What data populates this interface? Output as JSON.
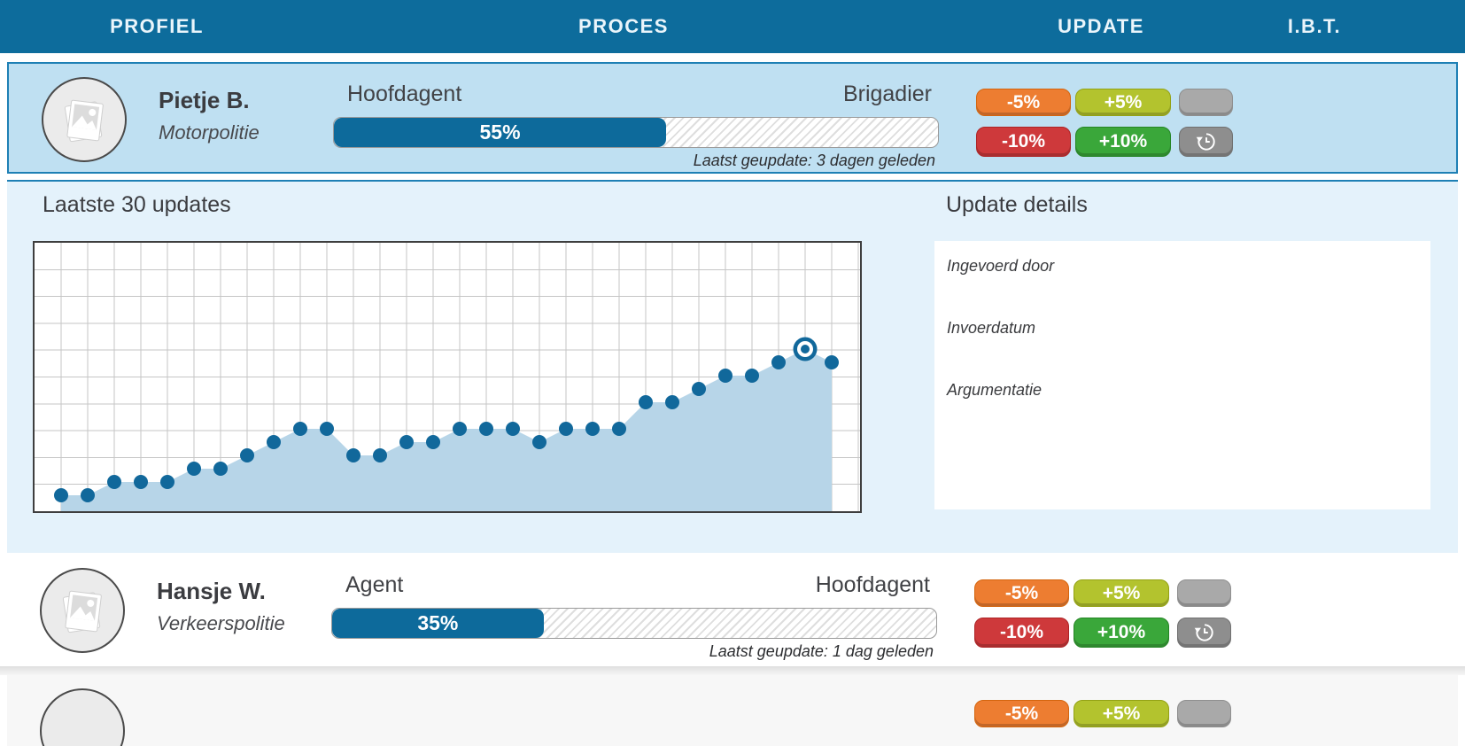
{
  "header": {
    "tabs": [
      {
        "label": "PROFIEL"
      },
      {
        "label": "PROCES"
      },
      {
        "label": "UPDATE"
      },
      {
        "label": "I.B.T."
      }
    ]
  },
  "button_labels": {
    "minus5": "-5%",
    "plus5": "+5%",
    "minus10": "-10%",
    "plus10": "+10%"
  },
  "rows": [
    {
      "name": "Pietje B.",
      "unit": "Motorpolitie",
      "level_from": "Hoofdagent",
      "level_to": "Brigadier",
      "progress_pct": 55,
      "progress_label": "55%",
      "last_update": "Laatst geupdate: 3 dagen geleden",
      "selected": true
    },
    {
      "name": "Hansje W.",
      "unit": "Verkeerspolitie",
      "level_from": "Agent",
      "level_to": "Hoofdagent",
      "progress_pct": 35,
      "progress_label": "35%",
      "last_update": "Laatst geupdate: 1 dag geleden",
      "selected": false
    }
  ],
  "expanded": {
    "chart_title": "Laatste 30 updates",
    "details_title": "Update details",
    "detail_fields": [
      {
        "label": "Ingevoerd door"
      },
      {
        "label": "Invoerdatum"
      },
      {
        "label": "Argumentatie"
      }
    ]
  },
  "chart_data": {
    "type": "area",
    "title": "Laatste 30 updates",
    "xlabel": "",
    "ylabel": "",
    "ylim": [
      0,
      100
    ],
    "grid": true,
    "legend": false,
    "num_points": 30,
    "values_pct": [
      5,
      5,
      10,
      10,
      10,
      15,
      15,
      20,
      25,
      30,
      30,
      20,
      20,
      25,
      25,
      30,
      30,
      30,
      25,
      30,
      30,
      30,
      40,
      40,
      45,
      50,
      50,
      55,
      60,
      55
    ],
    "highlighted_index": 29
  },
  "colors": {
    "header_bg": "#0d6c9c",
    "selected_row_bg": "#bfe0f2",
    "selected_row_border": "#1e80b5",
    "expanded_bg": "#e4f2fb",
    "bar_fill": "#0d6a9b",
    "chart_area_fill": "#b7d5e8",
    "chart_dot": "#11689b",
    "btn_minus5": "#ed7d31",
    "btn_plus5": "#b3c32e",
    "btn_minus10": "#ce393b",
    "btn_plus10": "#3aa73a",
    "btn_gray": "#a9a9a9",
    "btn_gray_dark": "#8e8e8e"
  }
}
